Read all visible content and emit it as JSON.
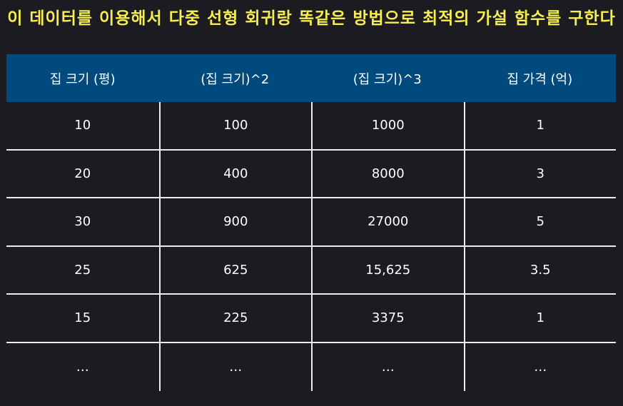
{
  "title": "이 데이터를 이용해서 다중 선형 회귀랑 똑같은 방법으로 최적의 가설 함수를 구한다",
  "table": {
    "headers": [
      "집 크기 (평)",
      "(집 크기)^2",
      "(집 크기)^3",
      "집 가격 (억)"
    ],
    "rows": [
      [
        "10",
        "100",
        "1000",
        "1"
      ],
      [
        "20",
        "400",
        "8000",
        "3"
      ],
      [
        "30",
        "900",
        "27000",
        "5"
      ],
      [
        "25",
        "625",
        "15,625",
        "3.5"
      ],
      [
        "15",
        "225",
        "3375",
        "1"
      ],
      [
        "…",
        "…",
        "…",
        "…"
      ]
    ]
  },
  "colors": {
    "background": "#1c1b21",
    "title_text": "#f4ee54",
    "header_background": "#004a7e",
    "grid_lines": "#ecedf0",
    "cell_text": "#ffffff"
  }
}
